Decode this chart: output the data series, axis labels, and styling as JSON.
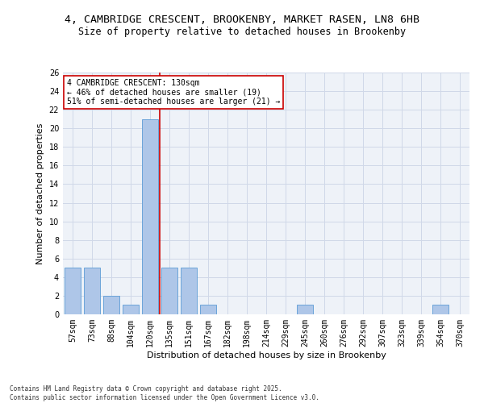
{
  "title_line1": "4, CAMBRIDGE CRESCENT, BROOKENBY, MARKET RASEN, LN8 6HB",
  "title_line2": "Size of property relative to detached houses in Brookenby",
  "xlabel": "Distribution of detached houses by size in Brookenby",
  "ylabel": "Number of detached properties",
  "categories": [
    "57sqm",
    "73sqm",
    "88sqm",
    "104sqm",
    "120sqm",
    "135sqm",
    "151sqm",
    "167sqm",
    "182sqm",
    "198sqm",
    "214sqm",
    "229sqm",
    "245sqm",
    "260sqm",
    "276sqm",
    "292sqm",
    "307sqm",
    "323sqm",
    "339sqm",
    "354sqm",
    "370sqm"
  ],
  "values": [
    5,
    5,
    2,
    1,
    21,
    5,
    5,
    1,
    0,
    0,
    0,
    0,
    1,
    0,
    0,
    0,
    0,
    0,
    0,
    1,
    0
  ],
  "bar_color": "#aec6e8",
  "bar_edge_color": "#5b9bd5",
  "grid_color": "#d0d8e8",
  "bg_color": "#eef2f8",
  "vline_x": 4.5,
  "vline_color": "#cc0000",
  "annotation_text": "4 CAMBRIDGE CRESCENT: 130sqm\n← 46% of detached houses are smaller (19)\n51% of semi-detached houses are larger (21) →",
  "annotation_box_color": "#ffffff",
  "annotation_box_edge": "#cc0000",
  "ylim": [
    0,
    26
  ],
  "yticks": [
    0,
    2,
    4,
    6,
    8,
    10,
    12,
    14,
    16,
    18,
    20,
    22,
    24,
    26
  ],
  "footnote": "Contains HM Land Registry data © Crown copyright and database right 2025.\nContains public sector information licensed under the Open Government Licence v3.0.",
  "title_fontsize": 9.5,
  "subtitle_fontsize": 8.5,
  "tick_fontsize": 7,
  "label_fontsize": 8,
  "annot_fontsize": 7,
  "footnote_fontsize": 5.5
}
